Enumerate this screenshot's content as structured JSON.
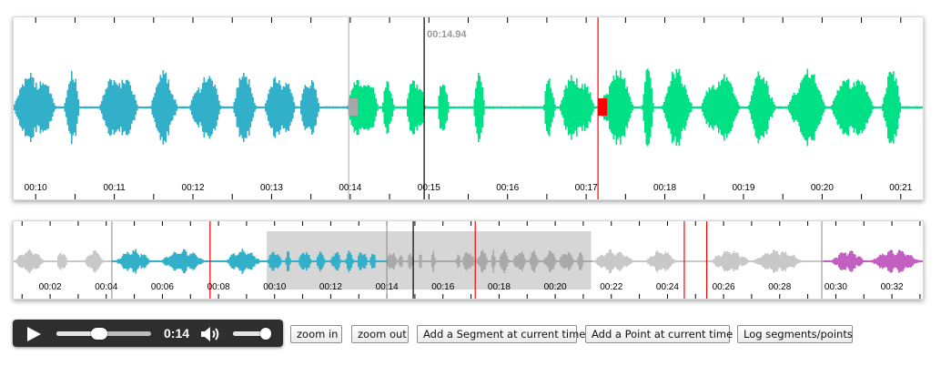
{
  "zoomview": {
    "visible_range_sec": [
      9.72,
      21.28
    ],
    "playhead_time_label": "00:14.94",
    "playhead_sec": 14.94,
    "time_labels": [
      "00:10",
      "00:11",
      "00:12",
      "00:13",
      "00:14",
      "00:15",
      "00:16",
      "00:17",
      "00:18",
      "00:19",
      "00:20",
      "00:21"
    ],
    "segments": [
      {
        "start_sec": 9.72,
        "end_sec": 13.98,
        "color": "#33b0c9"
      },
      {
        "start_sec": 13.98,
        "end_sec": 21.28,
        "color": "#00e085"
      }
    ],
    "points_sec": [
      17.15
    ],
    "segment_marker_sec": 13.98,
    "colors": {
      "segment_marker": "#a8a8a8",
      "point_marker": "#ff0000",
      "playhead": "#000000"
    }
  },
  "overview": {
    "visible_range_sec": [
      0.7,
      33.1
    ],
    "time_labels": [
      "00:02",
      "00:04",
      "00:06",
      "00:08",
      "00:10",
      "00:12",
      "00:14",
      "00:16",
      "00:18",
      "00:20",
      "00:22",
      "00:24",
      "00:26",
      "00:28",
      "00:30",
      "00:32"
    ],
    "highlight_range_sec": [
      9.72,
      21.28
    ],
    "playhead_sec": 14.94,
    "points_sec": [
      7.7,
      17.15,
      24.6,
      25.4
    ],
    "segment_boundaries_sec": [
      4.2,
      14.0,
      29.5
    ],
    "segments": [
      {
        "start_sec": 4.2,
        "end_sec": 14.0,
        "color": "#33b0c9"
      },
      {
        "start_sec": 29.5,
        "end_sec": 33.1,
        "color": "#c45fc2"
      }
    ],
    "colors": {
      "waveform": "#c8c8c8",
      "highlight": "#cccccc",
      "point_marker": "#ff0000"
    }
  },
  "player": {
    "play_icon": "play-icon",
    "time": "0:14",
    "seek_fraction": 0.45,
    "volume_icon": "speaker-icon",
    "volume_fraction": 0.85
  },
  "buttons": {
    "zoom_in": "zoom in",
    "zoom_out": "zoom out",
    "add_segment": "Add a Segment at current time",
    "add_point": "Add a Point at current time",
    "log": "Log segments/points"
  }
}
